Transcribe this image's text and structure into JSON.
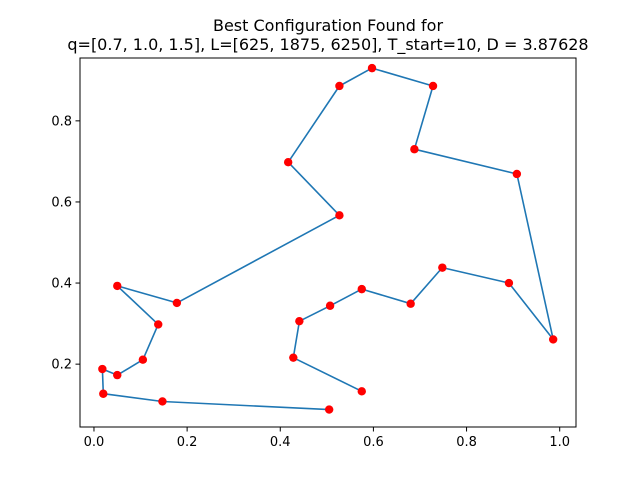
{
  "chart_data": {
    "type": "line",
    "title": "Best Configuration Found for",
    "subtitle": "q=[0.7, 1.0, 1.5], L=[625, 1875, 6250], T_start=10, D = 3.87628",
    "xlabel": "",
    "ylabel": "",
    "xlim": [
      -0.03,
      1.035
    ],
    "ylim": [
      0.045,
      0.955
    ],
    "xticks": [
      "0.0",
      "0.2",
      "0.4",
      "0.6",
      "0.8",
      "1.0"
    ],
    "yticks": [
      "0.2",
      "0.4",
      "0.6",
      "0.8"
    ],
    "grid": false,
    "line_color": "#1f77b4",
    "marker_color": "#ff0000",
    "series": [
      {
        "x": [
          0.505,
          0.147,
          0.02,
          0.018,
          0.05,
          0.105,
          0.138,
          0.05,
          0.178,
          0.527,
          0.417,
          0.527,
          0.597,
          0.728,
          0.688,
          0.908,
          0.986,
          0.891,
          0.748,
          0.68,
          0.575,
          0.507,
          0.441,
          0.428,
          0.575
        ],
        "y": [
          0.088,
          0.108,
          0.127,
          0.188,
          0.173,
          0.211,
          0.298,
          0.393,
          0.351,
          0.567,
          0.698,
          0.886,
          0.93,
          0.886,
          0.73,
          0.669,
          0.261,
          0.4,
          0.438,
          0.349,
          0.385,
          0.344,
          0.306,
          0.216,
          0.133
        ]
      }
    ]
  }
}
